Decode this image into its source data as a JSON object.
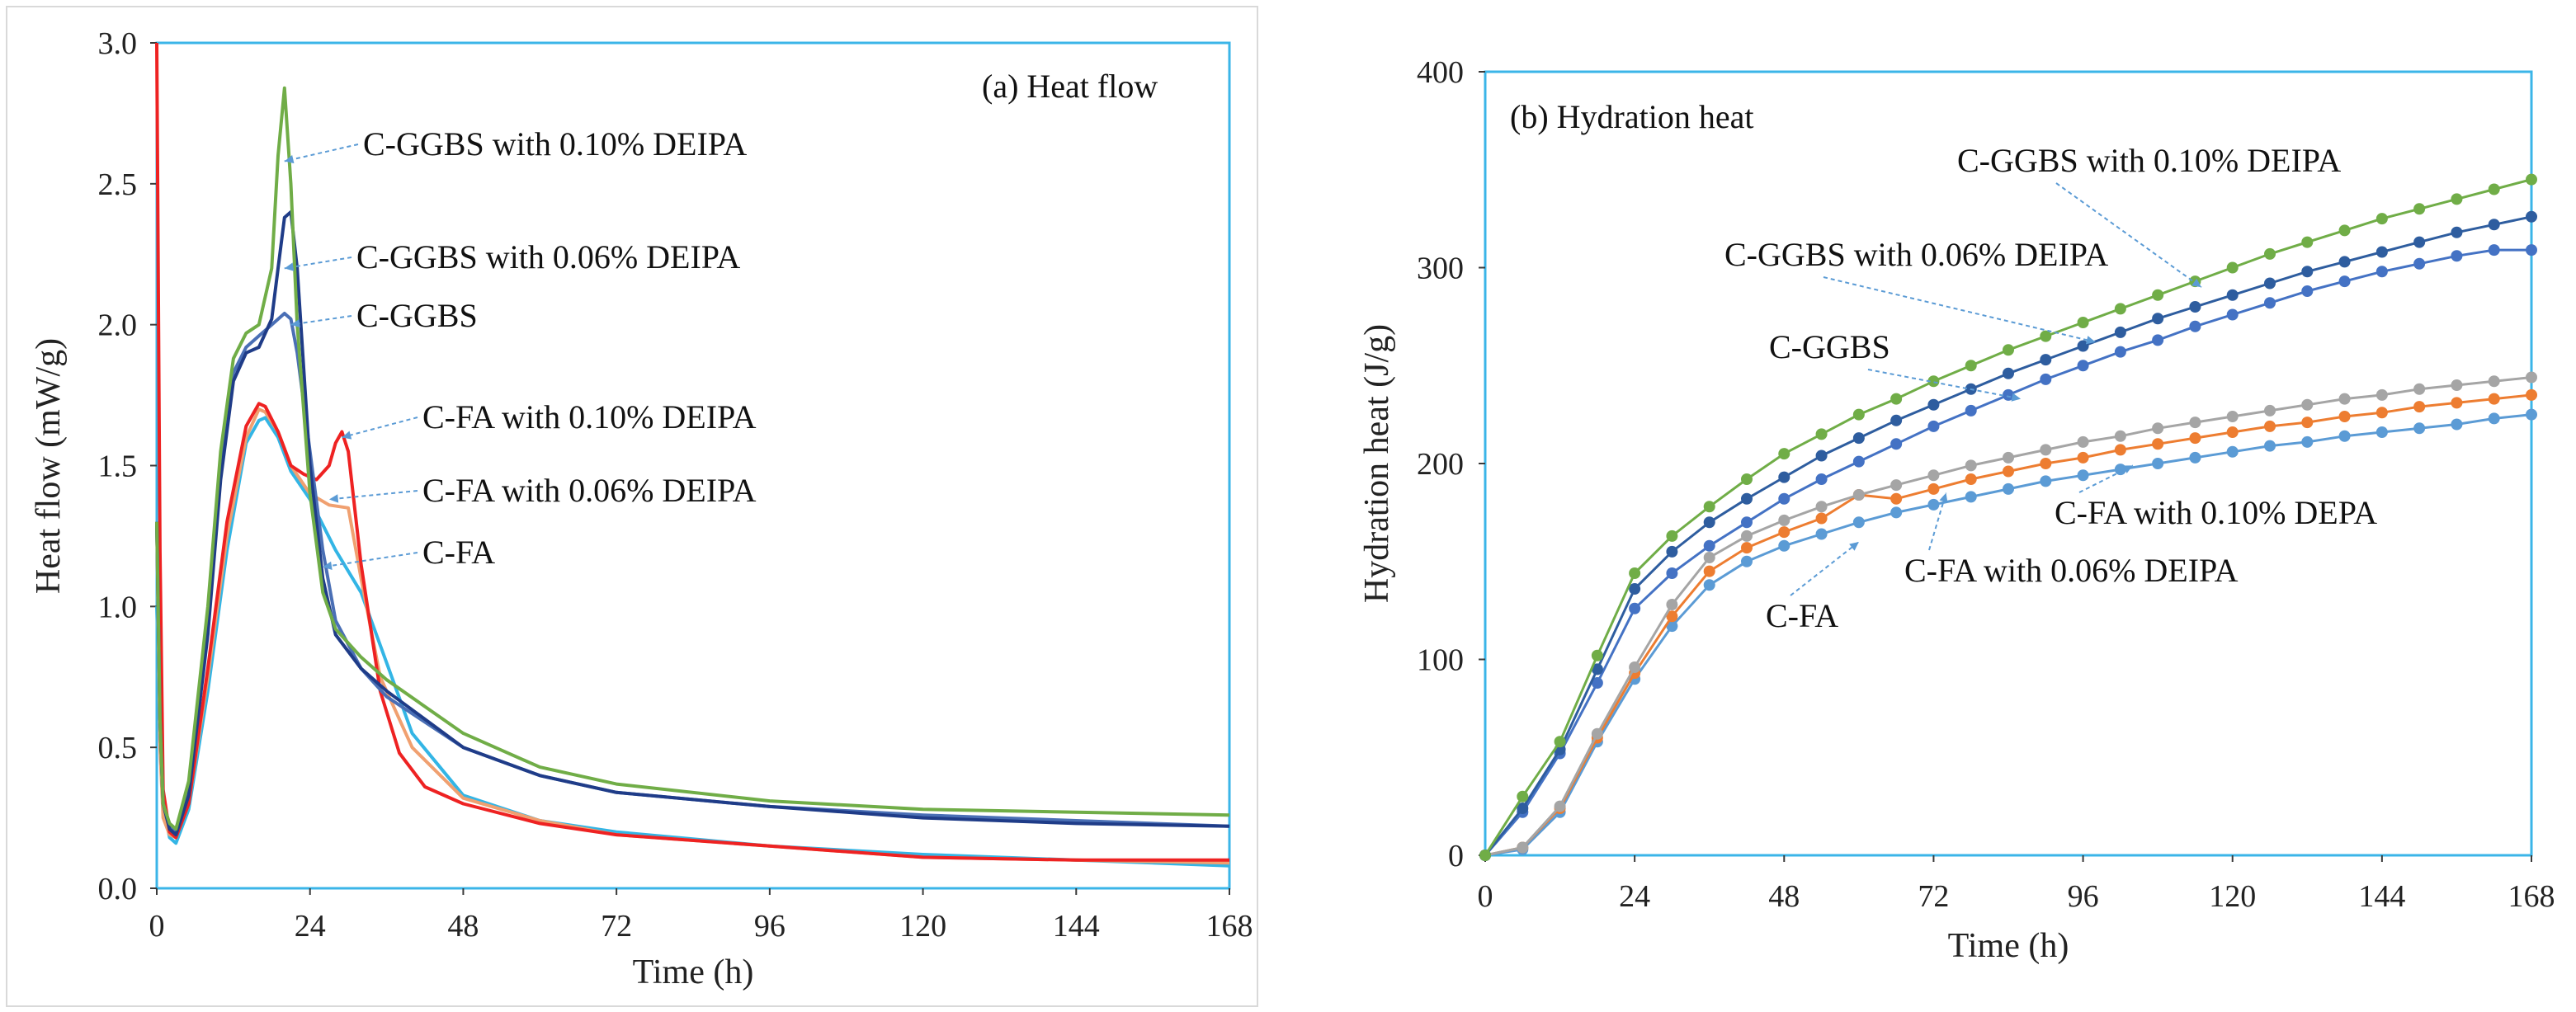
{
  "chart_data": [
    {
      "type": "line",
      "title": "(a) Heat flow",
      "xlabel": "Time (h)",
      "ylabel": "Heat flow (mW/g)",
      "xlim": [
        0,
        168
      ],
      "ylim": [
        0,
        3.0
      ],
      "xticks": [
        "0",
        "24",
        "48",
        "72",
        "96",
        "120",
        "144",
        "168"
      ],
      "yticks": [
        "0.0",
        "0.5",
        "1.0",
        "1.5",
        "2.0",
        "2.5",
        "3.0"
      ],
      "grid": false,
      "series": [
        {
          "name": "C-FA",
          "color": "#33b5e5",
          "x": [
            0,
            0.5,
            1,
            2,
            3,
            5,
            8,
            11,
            14,
            16,
            17,
            19,
            21,
            24,
            28,
            32,
            36,
            40,
            48,
            60,
            72,
            96,
            120,
            144,
            168
          ],
          "y": [
            1.0,
            0.6,
            0.3,
            0.18,
            0.16,
            0.28,
            0.7,
            1.2,
            1.58,
            1.66,
            1.67,
            1.6,
            1.48,
            1.38,
            1.2,
            1.05,
            0.8,
            0.55,
            0.33,
            0.24,
            0.2,
            0.15,
            0.12,
            0.1,
            0.08
          ]
        },
        {
          "name": "C-FA with 0.06% DEIPA",
          "color": "#f0a070",
          "x": [
            0,
            0.5,
            1,
            2,
            3,
            5,
            8,
            11,
            14,
            16,
            17,
            19,
            21,
            24,
            27,
            30,
            32,
            35,
            40,
            48,
            60,
            72,
            96,
            120,
            144,
            168
          ],
          "y": [
            1.3,
            0.5,
            0.25,
            0.19,
            0.18,
            0.3,
            0.75,
            1.25,
            1.6,
            1.7,
            1.69,
            1.62,
            1.5,
            1.4,
            1.36,
            1.35,
            1.1,
            0.75,
            0.5,
            0.32,
            0.24,
            0.19,
            0.15,
            0.11,
            0.1,
            0.09
          ]
        },
        {
          "name": "C-FA with 0.10% DEIPA",
          "color": "#ee2222",
          "x": [
            0,
            0.5,
            1,
            2,
            3,
            5,
            8,
            11,
            14,
            16,
            17,
            19,
            21,
            23,
            25,
            27,
            28,
            29,
            30,
            32,
            35,
            38,
            42,
            48,
            60,
            72,
            96,
            120,
            144,
            168
          ],
          "y": [
            3.0,
            1.2,
            0.35,
            0.2,
            0.18,
            0.3,
            0.78,
            1.3,
            1.64,
            1.72,
            1.71,
            1.62,
            1.5,
            1.47,
            1.45,
            1.5,
            1.58,
            1.62,
            1.55,
            1.15,
            0.7,
            0.48,
            0.36,
            0.3,
            0.23,
            0.19,
            0.15,
            0.11,
            0.1,
            0.1
          ]
        },
        {
          "name": "C-GGBS",
          "color": "#4a6fb5",
          "x": [
            0,
            0.5,
            1,
            2,
            3,
            5,
            8,
            10,
            12,
            14,
            16,
            18,
            20,
            21,
            22,
            24,
            26,
            28,
            32,
            36,
            48,
            60,
            72,
            96,
            120,
            144,
            168
          ],
          "y": [
            1.3,
            0.6,
            0.3,
            0.22,
            0.2,
            0.35,
            0.95,
            1.5,
            1.83,
            1.92,
            1.96,
            2.0,
            2.04,
            2.02,
            1.9,
            1.55,
            1.2,
            0.95,
            0.78,
            0.68,
            0.5,
            0.4,
            0.34,
            0.29,
            0.26,
            0.24,
            0.22
          ]
        },
        {
          "name": "C-GGBS with 0.06% DEIPA",
          "color": "#1f3c88",
          "x": [
            0,
            0.5,
            1,
            2,
            3,
            5,
            8,
            10,
            12,
            14,
            16,
            18,
            19,
            20,
            21,
            22,
            24,
            26,
            28,
            32,
            36,
            48,
            60,
            72,
            96,
            120,
            144,
            168
          ],
          "y": [
            1.3,
            0.6,
            0.3,
            0.21,
            0.19,
            0.33,
            0.9,
            1.45,
            1.8,
            1.9,
            1.92,
            2.02,
            2.2,
            2.38,
            2.4,
            2.2,
            1.5,
            1.1,
            0.9,
            0.78,
            0.7,
            0.5,
            0.4,
            0.34,
            0.29,
            0.25,
            0.23,
            0.22
          ]
        },
        {
          "name": "C-GGBS with 0.10% DEIPA",
          "color": "#70ad47",
          "x": [
            0,
            0.5,
            1,
            2,
            3,
            5,
            8,
            10,
            12,
            14,
            16,
            18,
            19,
            20,
            21,
            22,
            24,
            26,
            28,
            32,
            36,
            48,
            60,
            72,
            96,
            120,
            144,
            168
          ],
          "y": [
            1.3,
            0.6,
            0.3,
            0.23,
            0.21,
            0.38,
            1.0,
            1.55,
            1.88,
            1.97,
            2.0,
            2.2,
            2.6,
            2.84,
            2.5,
            2.0,
            1.4,
            1.05,
            0.92,
            0.82,
            0.74,
            0.55,
            0.43,
            0.37,
            0.31,
            0.28,
            0.27,
            0.26
          ]
        }
      ],
      "annotations": [
        {
          "text": "C-GGBS with 0.10% DEIPA",
          "target": [
            20,
            2.58
          ]
        },
        {
          "text": "C-GGBS with 0.06% DEIPA",
          "target": [
            20,
            2.2
          ]
        },
        {
          "text": "C-GGBS",
          "target": [
            21,
            2.0
          ]
        },
        {
          "text": "C-FA with 0.10% DEIPA",
          "target": [
            29,
            1.6
          ]
        },
        {
          "text": "C-FA with 0.06% DEIPA",
          "target": [
            27,
            1.38
          ]
        },
        {
          "text": "C-FA",
          "target": [
            26,
            1.14
          ]
        }
      ]
    },
    {
      "type": "line",
      "title": "(b) Hydration heat",
      "xlabel": "Time (h)",
      "ylabel": "Hydration heat (J/g)",
      "xlim": [
        0,
        168
      ],
      "ylim": [
        0,
        400
      ],
      "xticks": [
        "0",
        "24",
        "48",
        "72",
        "96",
        "120",
        "144",
        "168"
      ],
      "yticks": [
        "0",
        "100",
        "200",
        "300",
        "400"
      ],
      "grid": false,
      "markers": true,
      "series": [
        {
          "name": "C-FA",
          "color": "#5b9bd5",
          "x": [
            0,
            6,
            12,
            18,
            24,
            30,
            36,
            42,
            48,
            54,
            60,
            66,
            72,
            78,
            84,
            90,
            96,
            102,
            108,
            114,
            120,
            126,
            132,
            138,
            144,
            150,
            156,
            162,
            168
          ],
          "y": [
            0,
            3,
            22,
            58,
            90,
            117,
            138,
            150,
            158,
            164,
            170,
            175,
            179,
            183,
            187,
            191,
            194,
            197,
            200,
            203,
            206,
            209,
            211,
            214,
            216,
            218,
            220,
            223,
            225
          ]
        },
        {
          "name": "C-FA with 0.06% DEIPA",
          "color": "#ed7d31",
          "x": [
            0,
            6,
            12,
            18,
            24,
            30,
            36,
            42,
            48,
            54,
            60,
            66,
            72,
            78,
            84,
            90,
            96,
            102,
            108,
            114,
            120,
            126,
            132,
            138,
            144,
            150,
            156,
            162,
            168
          ],
          "y": [
            0,
            4,
            24,
            60,
            93,
            122,
            145,
            157,
            165,
            172,
            184,
            182,
            187,
            192,
            196,
            200,
            203,
            207,
            210,
            213,
            216,
            219,
            221,
            224,
            226,
            229,
            231,
            233,
            235
          ]
        },
        {
          "name": "C-FA with 0.10% DEIPA",
          "color": "#a5a5a5",
          "x": [
            0,
            6,
            12,
            18,
            24,
            30,
            36,
            42,
            48,
            54,
            60,
            66,
            72,
            78,
            84,
            90,
            96,
            102,
            108,
            114,
            120,
            126,
            132,
            138,
            144,
            150,
            156,
            162,
            168
          ],
          "y": [
            0,
            4,
            25,
            62,
            96,
            128,
            152,
            163,
            171,
            178,
            184,
            189,
            194,
            199,
            203,
            207,
            211,
            214,
            218,
            221,
            224,
            227,
            230,
            233,
            235,
            238,
            240,
            242,
            244
          ]
        },
        {
          "name": "C-GGBS",
          "color": "#4472c4",
          "x": [
            0,
            6,
            12,
            18,
            24,
            30,
            36,
            42,
            48,
            54,
            60,
            66,
            72,
            78,
            84,
            90,
            96,
            102,
            108,
            114,
            120,
            126,
            132,
            138,
            144,
            150,
            156,
            162,
            168
          ],
          "y": [
            0,
            22,
            52,
            88,
            126,
            144,
            158,
            170,
            182,
            192,
            201,
            210,
            219,
            227,
            235,
            243,
            250,
            257,
            263,
            270,
            276,
            282,
            288,
            293,
            298,
            302,
            306,
            309,
            309
          ]
        },
        {
          "name": "C-GGBS with 0.06% DEIPA",
          "color": "#2e5d9f",
          "x": [
            0,
            6,
            12,
            18,
            24,
            30,
            36,
            42,
            48,
            54,
            60,
            66,
            72,
            78,
            84,
            90,
            96,
            102,
            108,
            114,
            120,
            126,
            132,
            138,
            144,
            150,
            156,
            162,
            168
          ],
          "y": [
            0,
            24,
            54,
            95,
            136,
            155,
            170,
            182,
            193,
            204,
            213,
            222,
            230,
            238,
            246,
            253,
            260,
            267,
            274,
            280,
            286,
            292,
            298,
            303,
            308,
            313,
            318,
            322,
            326
          ]
        },
        {
          "name": "C-GGBS with 0.10% DEIPA",
          "color": "#70ad47",
          "x": [
            0,
            6,
            12,
            18,
            24,
            30,
            36,
            42,
            48,
            54,
            60,
            66,
            72,
            78,
            84,
            90,
            96,
            102,
            108,
            114,
            120,
            126,
            132,
            138,
            144,
            150,
            156,
            162,
            168
          ],
          "y": [
            0,
            30,
            58,
            102,
            144,
            163,
            178,
            192,
            205,
            215,
            225,
            233,
            242,
            250,
            258,
            265,
            272,
            279,
            286,
            293,
            300,
            307,
            313,
            319,
            325,
            330,
            335,
            340,
            345
          ]
        }
      ],
      "annotations": [
        {
          "text": "C-GGBS with 0.10% DEIPA",
          "target": [
            115,
            290
          ]
        },
        {
          "text": "C-GGBS with 0.06% DEIPA",
          "target": [
            98,
            262
          ]
        },
        {
          "text": "C-GGBS",
          "target": [
            86,
            233
          ]
        },
        {
          "text": "C-FA with 0.10% DEPA",
          "target": [
            104,
            199
          ]
        },
        {
          "text": "C-FA with 0.06% DEIPA",
          "target": [
            74,
            185
          ]
        },
        {
          "text": "C-FA",
          "target": [
            60,
            160
          ]
        }
      ]
    }
  ]
}
